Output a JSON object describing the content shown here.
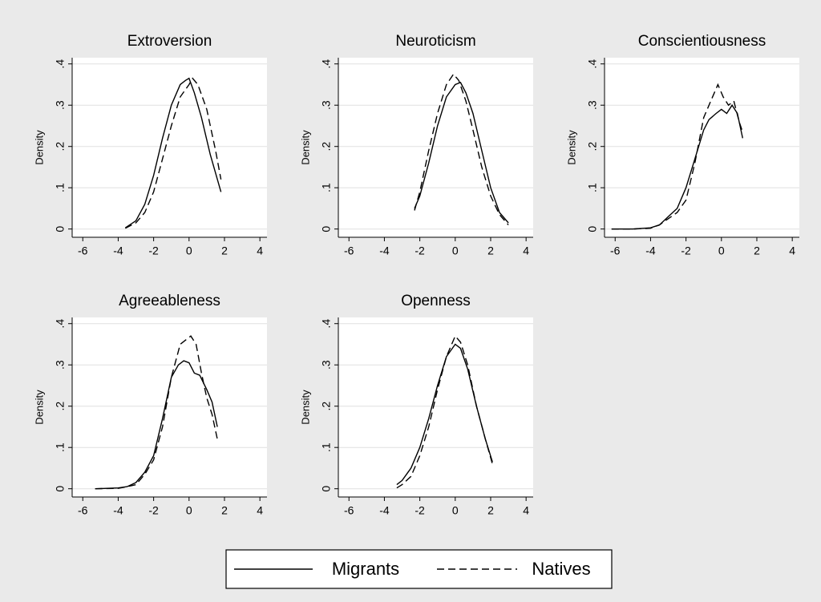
{
  "chart_data": [
    {
      "type": "line",
      "title": "Extroversion",
      "ylabel": "Density",
      "xlim": [
        -6.6,
        4.4
      ],
      "xticks": [
        -6,
        -4,
        -2,
        0,
        2,
        4
      ],
      "ylim": [
        -0.02,
        0.415
      ],
      "yticks": [
        0,
        {
          "value": 0.1,
          "label": ".1"
        },
        {
          "value": 0.2,
          "label": ".2"
        },
        {
          "value": 0.3,
          "label": ".3"
        },
        {
          "value": 0.4,
          "label": ".4"
        }
      ],
      "grid": true,
      "series": [
        {
          "name": "Migrants",
          "color": "#000000",
          "line_style": "solid",
          "x": [
            -3.6,
            -3,
            -2.5,
            -2,
            -1.5,
            -1,
            -0.5,
            -0.2,
            0,
            0.3,
            0.7,
            1.2,
            1.8
          ],
          "values": [
            0.003,
            0.02,
            0.06,
            0.13,
            0.22,
            0.3,
            0.35,
            0.36,
            0.365,
            0.33,
            0.27,
            0.18,
            0.09
          ]
        },
        {
          "name": "Natives",
          "color": "#000000",
          "line_style": "dashed",
          "x": [
            -3.6,
            -3,
            -2.5,
            -2,
            -1.5,
            -1,
            -0.5,
            0,
            0.2,
            0.5,
            1,
            1.5,
            1.8
          ],
          "values": [
            0.002,
            0.015,
            0.04,
            0.09,
            0.17,
            0.25,
            0.32,
            0.35,
            0.365,
            0.35,
            0.29,
            0.19,
            0.12
          ]
        }
      ]
    },
    {
      "type": "line",
      "title": "Neuroticism",
      "ylabel": "Density",
      "xlim": [
        -6.6,
        4.4
      ],
      "xticks": [
        -6,
        -4,
        -2,
        0,
        2,
        4
      ],
      "ylim": [
        -0.02,
        0.415
      ],
      "yticks": [
        0,
        {
          "value": 0.1,
          "label": ".1"
        },
        {
          "value": 0.2,
          "label": ".2"
        },
        {
          "value": 0.3,
          "label": ".3"
        },
        {
          "value": 0.4,
          "label": ".4"
        }
      ],
      "grid": true,
      "series": [
        {
          "name": "Migrants",
          "color": "#000000",
          "line_style": "solid",
          "x": [
            -2.3,
            -2,
            -1.5,
            -1,
            -0.5,
            0,
            0.3,
            0.6,
            1,
            1.5,
            2,
            2.5,
            3
          ],
          "values": [
            0.05,
            0.08,
            0.16,
            0.25,
            0.32,
            0.35,
            0.355,
            0.33,
            0.28,
            0.19,
            0.1,
            0.04,
            0.015
          ]
        },
        {
          "name": "Natives",
          "color": "#000000",
          "line_style": "dashed",
          "x": [
            -2.3,
            -2,
            -1.5,
            -1,
            -0.5,
            -0.1,
            0.2,
            0.6,
            1,
            1.5,
            2,
            2.5,
            3
          ],
          "values": [
            0.045,
            0.09,
            0.19,
            0.28,
            0.35,
            0.375,
            0.36,
            0.31,
            0.24,
            0.15,
            0.08,
            0.035,
            0.01
          ]
        }
      ]
    },
    {
      "type": "line",
      "title": "Conscientiousness",
      "ylabel": "Density",
      "xlim": [
        -6.6,
        4.4
      ],
      "xticks": [
        -6,
        -4,
        -2,
        0,
        2,
        4
      ],
      "ylim": [
        -0.02,
        0.415
      ],
      "yticks": [
        0,
        {
          "value": 0.1,
          "label": ".1"
        },
        {
          "value": 0.2,
          "label": ".2"
        },
        {
          "value": 0.3,
          "label": ".3"
        },
        {
          "value": 0.4,
          "label": ".4"
        }
      ],
      "grid": true,
      "series": [
        {
          "name": "Migrants",
          "color": "#000000",
          "line_style": "solid",
          "x": [
            -6.2,
            -5,
            -4,
            -3.5,
            -3,
            -2.5,
            -2,
            -1.5,
            -1,
            -0.7,
            -0.3,
            0,
            0.3,
            0.6,
            0.9,
            1.2
          ],
          "values": [
            0,
            0,
            0.003,
            0.01,
            0.03,
            0.05,
            0.1,
            0.17,
            0.24,
            0.265,
            0.28,
            0.29,
            0.28,
            0.3,
            0.28,
            0.22
          ]
        },
        {
          "name": "Natives",
          "color": "#000000",
          "line_style": "dashed",
          "x": [
            -6.2,
            -5,
            -4,
            -3.5,
            -3,
            -2.5,
            -2,
            -1.5,
            -1,
            -0.6,
            -0.2,
            0.1,
            0.4,
            0.7,
            1,
            1.2
          ],
          "values": [
            0,
            0,
            0.002,
            0.01,
            0.025,
            0.04,
            0.07,
            0.16,
            0.27,
            0.31,
            0.35,
            0.32,
            0.3,
            0.31,
            0.26,
            0.235
          ]
        }
      ]
    },
    {
      "type": "line",
      "title": "Agreeableness",
      "ylabel": "Density",
      "xlim": [
        -6.6,
        4.4
      ],
      "xticks": [
        -6,
        -4,
        -2,
        0,
        2,
        4
      ],
      "ylim": [
        -0.02,
        0.415
      ],
      "yticks": [
        0,
        {
          "value": 0.1,
          "label": ".1"
        },
        {
          "value": 0.2,
          "label": ".2"
        },
        {
          "value": 0.3,
          "label": ".3"
        },
        {
          "value": 0.4,
          "label": ".4"
        }
      ],
      "grid": true,
      "series": [
        {
          "name": "Migrants",
          "color": "#000000",
          "line_style": "solid",
          "x": [
            -5.3,
            -4,
            -3.5,
            -3,
            -2.5,
            -2,
            -1.5,
            -1,
            -0.6,
            -0.3,
            0,
            0.3,
            0.6,
            1,
            1.3,
            1.6
          ],
          "values": [
            0,
            0.002,
            0.005,
            0.015,
            0.04,
            0.08,
            0.17,
            0.27,
            0.3,
            0.31,
            0.305,
            0.28,
            0.275,
            0.24,
            0.21,
            0.15
          ]
        },
        {
          "name": "Natives",
          "color": "#000000",
          "line_style": "dashed",
          "x": [
            -5.3,
            -4,
            -3.5,
            -3,
            -2.5,
            -2,
            -1.5,
            -1,
            -0.5,
            -0.2,
            0.1,
            0.4,
            0.7,
            1,
            1.3,
            1.6
          ],
          "values": [
            0,
            0.001,
            0.005,
            0.01,
            0.035,
            0.07,
            0.15,
            0.27,
            0.35,
            0.36,
            0.37,
            0.35,
            0.28,
            0.22,
            0.18,
            0.12
          ]
        }
      ]
    },
    {
      "type": "line",
      "title": "Openness",
      "ylabel": "Density",
      "xlim": [
        -6.6,
        4.4
      ],
      "xticks": [
        -6,
        -4,
        -2,
        0,
        2,
        4
      ],
      "ylim": [
        -0.02,
        0.415
      ],
      "yticks": [
        0,
        {
          "value": 0.1,
          "label": ".1"
        },
        {
          "value": 0.2,
          "label": ".2"
        },
        {
          "value": 0.3,
          "label": ".3"
        },
        {
          "value": 0.4,
          "label": ".4"
        }
      ],
      "grid": true,
      "series": [
        {
          "name": "Migrants",
          "color": "#000000",
          "line_style": "solid",
          "x": [
            -3.3,
            -3,
            -2.5,
            -2,
            -1.5,
            -1,
            -0.5,
            0,
            0.3,
            0.7,
            1.2,
            1.7,
            2.1
          ],
          "values": [
            0.01,
            0.02,
            0.05,
            0.1,
            0.17,
            0.25,
            0.32,
            0.35,
            0.34,
            0.29,
            0.2,
            0.12,
            0.065
          ]
        },
        {
          "name": "Natives",
          "color": "#000000",
          "line_style": "dashed",
          "x": [
            -3.3,
            -3,
            -2.5,
            -2,
            -1.5,
            -1,
            -0.5,
            0,
            0.3,
            0.7,
            1.2,
            1.7,
            2.1
          ],
          "values": [
            0.002,
            0.01,
            0.03,
            0.08,
            0.15,
            0.24,
            0.32,
            0.37,
            0.355,
            0.3,
            0.2,
            0.12,
            0.06
          ]
        }
      ]
    }
  ]
}
